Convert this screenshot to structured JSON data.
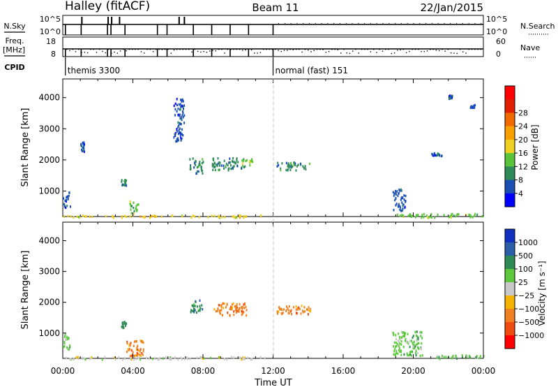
{
  "header": {
    "title": "Halley (fitACF)",
    "beam": "Beam 11",
    "date": "22/Jan/2015"
  },
  "chart_data": [
    {
      "type": "line",
      "panel": "nsky-nsearch",
      "left_label": "N.Sky",
      "right_label": "N.Search",
      "left_ticks": [
        "10^5",
        "10^0"
      ],
      "right_ticks": [
        "10^5",
        "10^0"
      ],
      "x": [
        0,
        1.05,
        2.55,
        2.75,
        3.55,
        5.4,
        5.95,
        7.45,
        8.5,
        9.55,
        10.6,
        12.0,
        24.0
      ],
      "drops_to_zero_at": [
        0.15,
        1.05,
        2.55,
        2.75,
        3.55,
        5.4,
        5.95,
        7.45,
        8.5,
        9.55,
        10.6,
        12.0
      ]
    },
    {
      "type": "scatter",
      "panel": "freq-nave",
      "left_label": "Freq.",
      "left_unit": "[MHz]",
      "right_label": "Nave",
      "left_ticks": [
        "18",
        "8"
      ],
      "right_ticks": [
        "60",
        "0"
      ]
    },
    {
      "type": "table",
      "panel": "cpid",
      "label": "CPID",
      "segments": [
        {
          "start": 0.15,
          "name": "themis 3300"
        },
        {
          "start": 12.0,
          "name": "normal (fast) 151"
        }
      ]
    },
    {
      "type": "heatmap",
      "panel": "power",
      "ylabel": "Slant Range [km]",
      "yticks": [
        "1000",
        "2000",
        "3000",
        "4000"
      ],
      "ylim": [
        180,
        4600
      ],
      "xlim": [
        0,
        24
      ],
      "colorbar_label": "Power [dB]",
      "colorbar_ticks": [
        "4",
        "8",
        "12",
        "16",
        "20",
        "24",
        "28"
      ],
      "colors": [
        "#0000ff",
        "#1a4fb4",
        "#2f8a5a",
        "#59c43a",
        "#f0d020",
        "#f7a000",
        "#f06a00",
        "#e02000",
        "#ff0000"
      ],
      "echo_regions": [
        {
          "t": [
            0.0,
            0.4
          ],
          "r": [
            500,
            1000
          ],
          "v": 1
        },
        {
          "t": [
            1.0,
            1.2
          ],
          "r": [
            2300,
            2600
          ],
          "v": 1
        },
        {
          "t": [
            3.3,
            3.6
          ],
          "r": [
            1200,
            1400
          ],
          "v": 2
        },
        {
          "t": [
            3.8,
            4.3
          ],
          "r": [
            300,
            700
          ],
          "v": 3
        },
        {
          "t": [
            6.3,
            6.9
          ],
          "r": [
            2600,
            4000
          ],
          "v": 1
        },
        {
          "t": [
            7.2,
            8.0
          ],
          "r": [
            1600,
            2100
          ],
          "v": 2
        },
        {
          "t": [
            8.5,
            10.2
          ],
          "r": [
            1700,
            2100
          ],
          "v": 2
        },
        {
          "t": [
            10.2,
            10.8
          ],
          "r": [
            1800,
            2100
          ],
          "v": 3
        },
        {
          "t": [
            12.2,
            14.1
          ],
          "r": [
            1700,
            1950
          ],
          "v": 2
        },
        {
          "t": [
            18.8,
            19.6
          ],
          "r": [
            400,
            1100
          ],
          "v": 1
        },
        {
          "t": [
            21.0,
            21.6
          ],
          "r": [
            2150,
            2250
          ],
          "v": 1
        },
        {
          "t": [
            22.0,
            22.2
          ],
          "r": [
            4000,
            4100
          ],
          "v": 1
        },
        {
          "t": [
            23.2,
            23.5
          ],
          "r": [
            3700,
            3800
          ],
          "v": 1
        },
        {
          "t": [
            19.0,
            24.0
          ],
          "r": [
            180,
            300
          ],
          "v": 3
        },
        {
          "t": [
            0.0,
            11.5
          ],
          "r": [
            180,
            250
          ],
          "v": 4
        }
      ]
    },
    {
      "type": "heatmap",
      "panel": "velocity",
      "ylabel": "Slant Range [km]",
      "yticks": [
        "1000",
        "2000",
        "3000",
        "4000"
      ],
      "ylim": [
        180,
        4600
      ],
      "xlim": [
        0,
        24
      ],
      "xticks": [
        "00:00",
        "04:00",
        "08:00",
        "12:00",
        "16:00",
        "20:00",
        "00:00"
      ],
      "xlabel": "Time UT",
      "colorbar_label": "Velocity [m s⁻¹]",
      "colorbar_ticks": [
        "1000",
        "500",
        "100",
        "25",
        "−25",
        "−100",
        "−500",
        "−1000"
      ],
      "colors": [
        "#1030c0",
        "#2a5fa8",
        "#2e8a55",
        "#5cc83c",
        "#c8c8c8",
        "#f5b400",
        "#f08020",
        "#ef4a10",
        "#ff0000"
      ],
      "echo_regions": [
        {
          "t": [
            0.0,
            0.4
          ],
          "r": [
            500,
            1000
          ],
          "v": 3
        },
        {
          "t": [
            3.3,
            3.6
          ],
          "r": [
            1200,
            1400
          ],
          "v": 2
        },
        {
          "t": [
            3.6,
            4.6
          ],
          "r": [
            250,
            800
          ],
          "v": 6
        },
        {
          "t": [
            7.2,
            8.0
          ],
          "r": [
            1700,
            2100
          ],
          "v": 2
        },
        {
          "t": [
            8.5,
            10.5
          ],
          "r": [
            1600,
            2000
          ],
          "v": 6
        },
        {
          "t": [
            12.2,
            14.1
          ],
          "r": [
            1650,
            1950
          ],
          "v": 6
        },
        {
          "t": [
            18.8,
            20.5
          ],
          "r": [
            300,
            1100
          ],
          "v": 3
        },
        {
          "t": [
            21.0,
            24.0
          ],
          "r": [
            200,
            320
          ],
          "v": 3
        },
        {
          "t": [
            0.0,
            11.5
          ],
          "r": [
            180,
            260
          ],
          "v": 4
        }
      ]
    }
  ]
}
